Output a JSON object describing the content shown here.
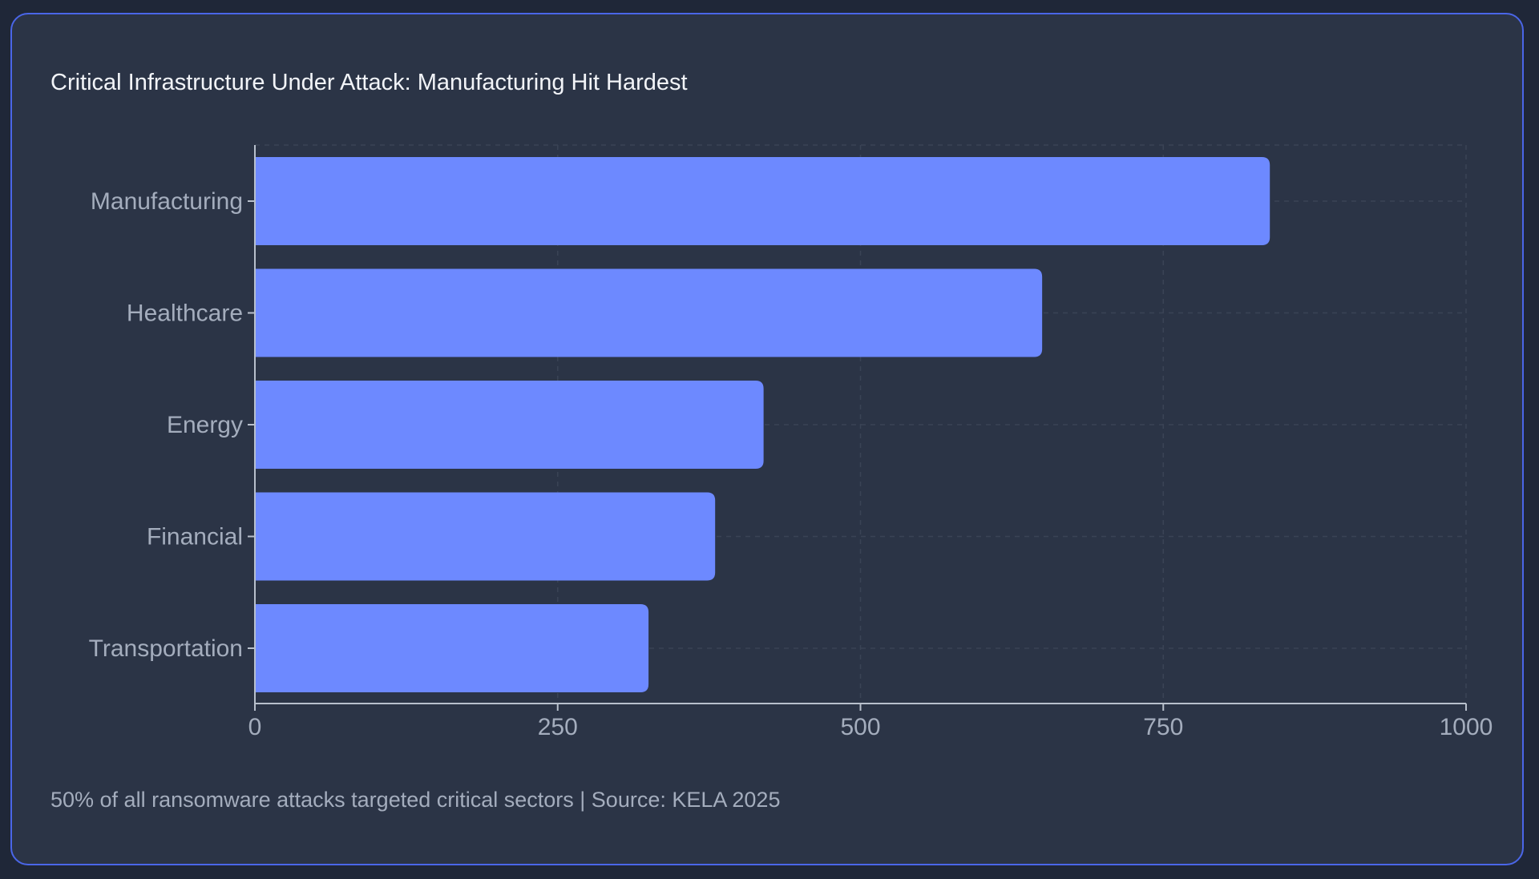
{
  "card": {
    "title": "Critical Infrastructure Under Attack: Manufacturing Hit Hardest",
    "footer": "50% of all ransomware attacks targeted critical sectors | Source: KELA 2025"
  },
  "colors": {
    "background": "#1f2738",
    "card": "#2b3446",
    "card_border": "#4a66e8",
    "bar": "#6d89ff",
    "grid": "#3a4355",
    "axis": "#b8c0cc",
    "tick_text": "#a4adbd",
    "title_text": "#f2f4f8"
  },
  "chart_data": {
    "type": "bar",
    "orientation": "horizontal",
    "title": "Critical Infrastructure Under Attack: Manufacturing Hit Hardest",
    "xlabel": "",
    "ylabel": "",
    "categories": [
      "Manufacturing",
      "Healthcare",
      "Energy",
      "Financial",
      "Transportation"
    ],
    "values": [
      838,
      650,
      420,
      380,
      325
    ],
    "xlim": [
      0,
      1000
    ],
    "xticks": [
      "0",
      "250",
      "500",
      "750",
      "1000"
    ],
    "grid": true
  }
}
